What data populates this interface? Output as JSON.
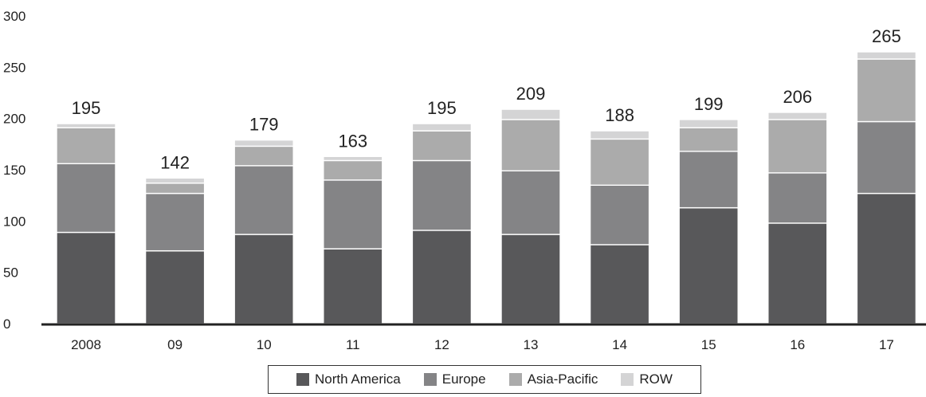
{
  "chart_data": {
    "type": "bar",
    "stacked": true,
    "categories": [
      "2008",
      "09",
      "10",
      "11",
      "12",
      "13",
      "14",
      "15",
      "16",
      "17"
    ],
    "totals": [
      195,
      142,
      179,
      163,
      195,
      209,
      188,
      199,
      206,
      265
    ],
    "series": [
      {
        "name": "North America",
        "color": "#58585a",
        "values": [
          89,
          71,
          87,
          73,
          91,
          87,
          77,
          113,
          98,
          127
        ]
      },
      {
        "name": "Europe",
        "color": "#848486",
        "values": [
          67,
          56,
          67,
          67,
          68,
          62,
          58,
          55,
          49,
          70
        ]
      },
      {
        "name": "Asia-Pacific",
        "color": "#ababab",
        "values": [
          35,
          10,
          19,
          19,
          29,
          50,
          45,
          23,
          52,
          61
        ]
      },
      {
        "name": "ROW",
        "color": "#d4d4d5",
        "values": [
          4,
          5,
          6,
          4,
          7,
          10,
          8,
          8,
          7,
          7
        ]
      }
    ],
    "ylim": [
      0,
      300
    ],
    "yticks": [
      "0",
      "50",
      "100",
      "150",
      "200",
      "250",
      "300"
    ],
    "grid": false,
    "legend_position": "bottom"
  }
}
